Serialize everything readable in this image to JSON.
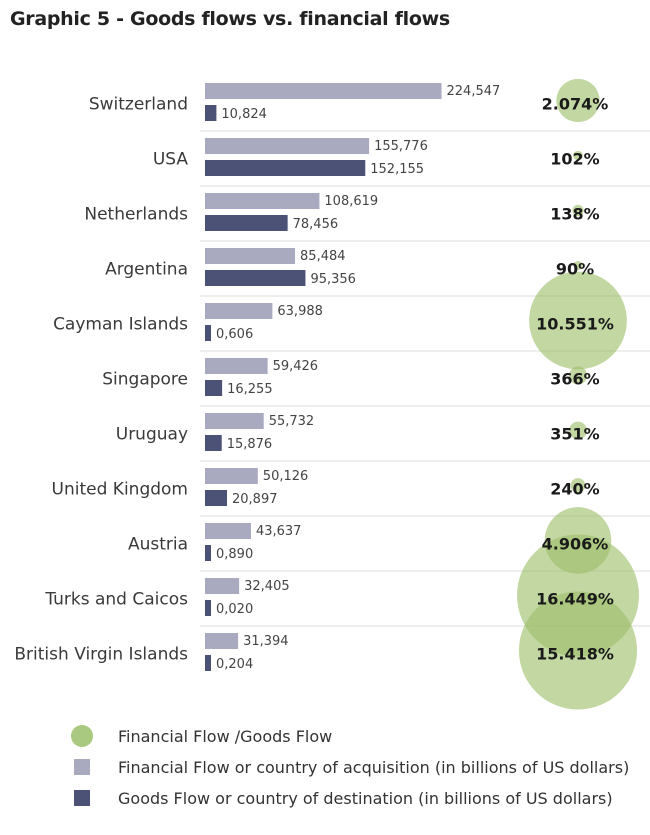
{
  "title": "Graphic 5 - Goods flows vs. financial flows",
  "colors": {
    "financial": "#a9a9bf",
    "goods": "#4b5275",
    "bubble": "#9ebf6b",
    "separator": "#dddddd"
  },
  "legend": [
    {
      "label": "Financial Flow /Goods Flow",
      "shape": "circle",
      "color": "#a8c97f"
    },
    {
      "label": "Financial Flow or country of acquisition (in billions of US dollars)",
      "shape": "square",
      "color": "#a9a9bf"
    },
    {
      "label": "Goods Flow or country of destination (in billions of US dollars)",
      "shape": "square",
      "color": "#4b5275"
    }
  ],
  "chart_data": {
    "type": "bar",
    "orientation": "horizontal",
    "title": "Graphic 5 - Goods flows vs. financial flows",
    "categories": [
      "Switzerland",
      "USA",
      "Netherlands",
      "Argentina",
      "Cayman Islands",
      "Singapore",
      "Uruguay",
      "United Kingdom",
      "Austria",
      "Turks and Caicos",
      "British Virgin Islands"
    ],
    "series": [
      {
        "name": "Financial Flow or country of acquisition (in billions of US dollars)",
        "values": [
          224.547,
          155.776,
          108.619,
          85.484,
          63.988,
          59.426,
          55.732,
          50.126,
          43.637,
          32.405,
          31.394
        ],
        "labels": [
          "224,547",
          "155,776",
          "108,619",
          "85,484",
          "63,988",
          "59,426",
          "55,732",
          "50,126",
          "43,637",
          "32,405",
          "31,394"
        ]
      },
      {
        "name": "Goods Flow or country of destination (in billions of US dollars)",
        "values": [
          10.824,
          152.155,
          78.456,
          95.356,
          0.606,
          16.255,
          15.876,
          20.897,
          0.89,
          0.02,
          0.204
        ],
        "labels": [
          "10,824",
          "152,155",
          "78,456",
          "95,356",
          "0,606",
          "16,255",
          "15,876",
          "20,897",
          "0,890",
          "0,020",
          "0,204"
        ]
      }
    ],
    "ratio": {
      "name": "Financial Flow /Goods Flow",
      "values": [
        2074,
        102,
        138,
        90,
        10551,
        366,
        351,
        240,
        4906,
        16449,
        15418
      ],
      "labels": [
        "2.074%",
        "102%",
        "138%",
        "90%",
        "10.551%",
        "366%",
        "351%",
        "240%",
        "4.906%",
        "16.449%",
        "15.418%"
      ]
    },
    "xlim": [
      0,
      225
    ]
  }
}
